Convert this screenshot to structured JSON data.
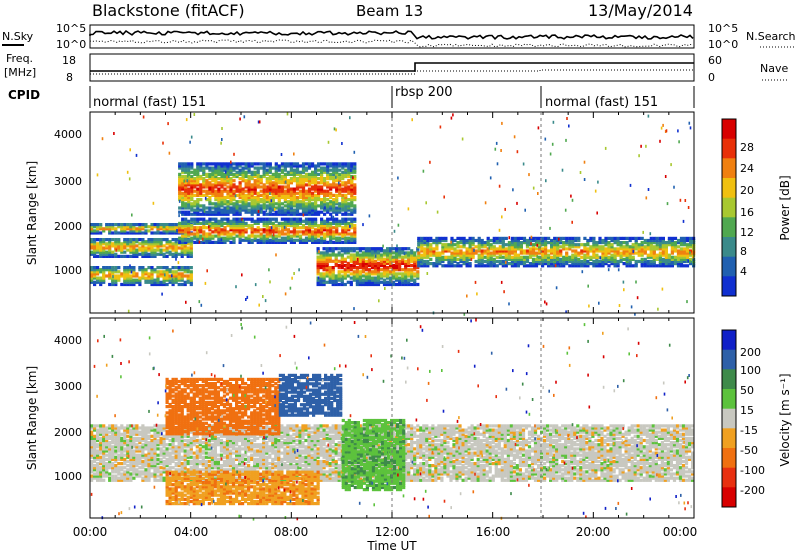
{
  "header": {
    "station": "Blackstone (fitACF)",
    "beam": "Beam 13",
    "date": "13/May/2014"
  },
  "top_panels": {
    "nsky_label": "N.Sky",
    "nsearch_label": "N.Search",
    "noise_ticks_left": [
      "10^5",
      "10^0"
    ],
    "noise_ticks_right": [
      "10^5",
      "10^0"
    ],
    "freq_label": "Freq.",
    "freq_unit": "[MHz]",
    "freq_ticks": [
      "18",
      "8"
    ],
    "nave_label": "Nave",
    "nave_ticks": [
      "60",
      "0"
    ],
    "cpid_label": "CPID",
    "cpid_segments": [
      {
        "label": "normal (fast) 151",
        "start_h": 0,
        "end_h": 12.0
      },
      {
        "label": "rbsp 200",
        "start_h": 12.0,
        "end_h": 18.0
      },
      {
        "label": "normal (fast) 151",
        "start_h": 18.0,
        "end_h": 24.0
      }
    ]
  },
  "chart_data": [
    {
      "type": "heatmap",
      "parameter": "power",
      "ylabel": "Slant Range [km]",
      "ylim": [
        300,
        4600
      ],
      "y_ticks": [
        "1000",
        "2000",
        "3000",
        "4000"
      ],
      "xlim": [
        0,
        24
      ],
      "colorbar_label": "Power [dB]",
      "colorbar_ticks": [
        "4",
        "8",
        "12",
        "16",
        "20",
        "24",
        "28"
      ],
      "colorbar_colors": [
        "#1030d0",
        "#2060b0",
        "#3a8a8a",
        "#50a850",
        "#a8c830",
        "#f0c010",
        "#f08010",
        "#e83008",
        "#d80000"
      ],
      "bands": [
        {
          "start_h": 0.0,
          "end_h": 4.0,
          "ranges_km": [
            [
              900,
              1300
            ],
            [
              1500,
              1900
            ],
            [
              2000,
              2200
            ]
          ],
          "peak_db": 24
        },
        {
          "start_h": 3.5,
          "end_h": 10.5,
          "ranges_km": [
            [
              1800,
              2300
            ],
            [
              2400,
              3500
            ]
          ],
          "peak_db": 28
        },
        {
          "start_h": 9.0,
          "end_h": 13.0,
          "ranges_km": [
            [
              900,
              1700
            ]
          ],
          "peak_db": 30
        },
        {
          "start_h": 13.0,
          "end_h": 24.0,
          "ranges_km": [
            [
              1300,
              1900
            ]
          ],
          "peak_db": 24
        }
      ]
    },
    {
      "type": "heatmap",
      "parameter": "velocity",
      "ylabel": "Slant Range [km]",
      "ylim": [
        300,
        4600
      ],
      "y_ticks": [
        "1000",
        "2000",
        "3000",
        "4000"
      ],
      "xlim": [
        0,
        24
      ],
      "colorbar_label": "Velocity [m s⁻¹]",
      "colorbar_ticks": [
        "200",
        "100",
        "50",
        "15",
        "-15",
        "-50",
        "-100",
        "-200"
      ],
      "colorbar_colors": [
        "#1020c8",
        "#2e60a8",
        "#3e8a4a",
        "#5cc23c",
        "#c8c8c0",
        "#f0a020",
        "#f07010",
        "#e83010",
        "#d80000"
      ],
      "bands": [
        {
          "start_h": 0.0,
          "end_h": 24.0,
          "ranges_km": [
            [
              1100,
              2300
            ]
          ],
          "velocity": 0
        },
        {
          "start_h": 3.0,
          "end_h": 7.5,
          "ranges_km": [
            [
              2100,
              3300
            ]
          ],
          "velocity": -80
        },
        {
          "start_h": 7.5,
          "end_h": 10.0,
          "ranges_km": [
            [
              2500,
              3400
            ]
          ],
          "velocity": 180
        },
        {
          "start_h": 3.0,
          "end_h": 9.0,
          "ranges_km": [
            [
              600,
              1300
            ]
          ],
          "velocity": -40
        },
        {
          "start_h": 10.0,
          "end_h": 12.5,
          "ranges_km": [
            [
              900,
              2400
            ]
          ],
          "velocity": 40
        }
      ]
    }
  ],
  "x_axis": {
    "ticks": [
      "00:00",
      "04:00",
      "08:00",
      "12:00",
      "16:00",
      "20:00",
      "00:00"
    ],
    "label": "Time UT"
  }
}
